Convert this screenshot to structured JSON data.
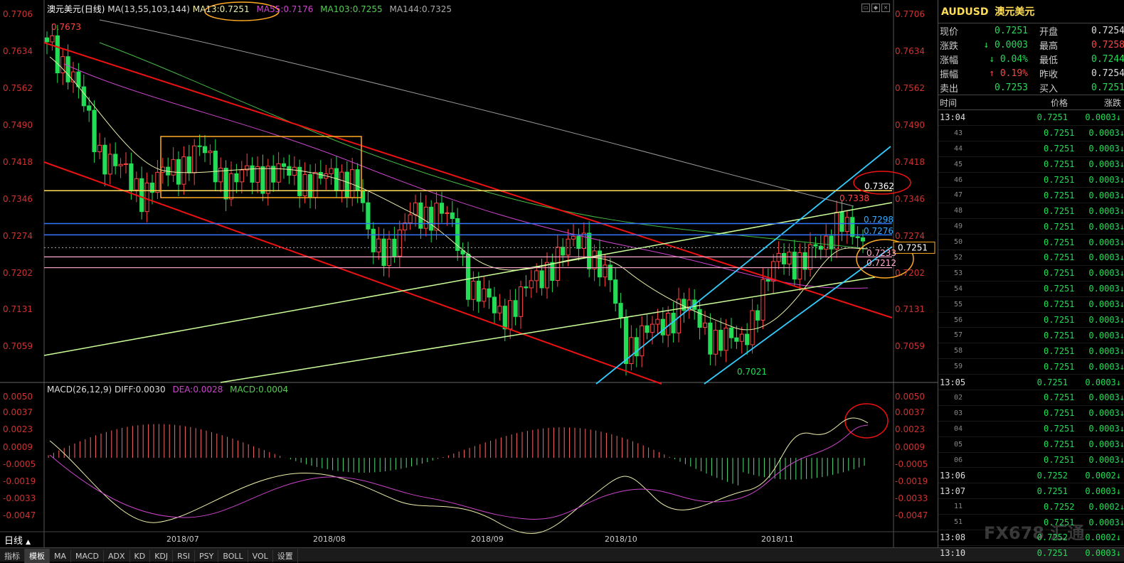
{
  "header": {
    "symbol_cn": "澳元美元",
    "period": "日线",
    "ma_params": "MA(13,55,103,144)",
    "ma13": "MA13:0.7251",
    "ma55": "MA55:0.7176",
    "ma103": "MA103:0.7255",
    "ma144": "MA144:0.7325"
  },
  "price_axis": [
    "0.7706",
    "0.7634",
    "0.7562",
    "0.7490",
    "0.7418",
    "0.7346",
    "0.7274",
    "0.7202",
    "0.7131",
    "0.7059"
  ],
  "annotations": {
    "high": "0.7673",
    "low": "0.7021",
    "recent_high": "0.7338",
    "yellow_line": "0.7362",
    "blue1": "0.7298",
    "blue2": "0.7276",
    "pink1": "0.7233",
    "pink2": "0.7212",
    "current": "0.7251"
  },
  "macd": {
    "label": "MACD(26,12,9)",
    "diff": "DIFF:0.0030",
    "dea": "DEA:0.0028",
    "macd": "MACD:0.0004",
    "axis": [
      "0.0050",
      "0.0037",
      "0.0023",
      "0.0009",
      "-0.0005",
      "-0.0019",
      "-0.0033",
      "-0.0047"
    ]
  },
  "dates": [
    "2018/07",
    "2018/08",
    "2018/09",
    "2018/10",
    "2018/11"
  ],
  "period_label": "日线",
  "tabs": [
    "指标",
    "模板",
    "MA",
    "MACD",
    "ADX",
    "KD",
    "KDJ",
    "RSI",
    "PSY",
    "BOLL",
    "VOL",
    "设置"
  ],
  "active_tab": "模板",
  "quote": {
    "code": "AUDUSD",
    "name": "澳元美元",
    "rows": [
      {
        "k": "现价",
        "v": "0.7251",
        "k2": "开盘",
        "v2": "0.7254",
        "c1": "#22dd55",
        "c2": "#dddddd"
      },
      {
        "k": "涨跌",
        "v": "↓ 0.0003",
        "k2": "最高",
        "v2": "0.7258",
        "c1": "#22dd55",
        "c2": "#ff4444"
      },
      {
        "k": "涨幅",
        "v": "↓ 0.04%",
        "k2": "最低",
        "v2": "0.7244",
        "c1": "#22dd55",
        "c2": "#22dd55"
      },
      {
        "k": "振幅",
        "v": "↑ 0.19%",
        "k2": "昨收",
        "v2": "0.7254",
        "c1": "#ff4444",
        "c2": "#dddddd"
      },
      {
        "k": "卖出",
        "v": "0.7253",
        "k2": "买入",
        "v2": "0.7251",
        "c1": "#22dd55",
        "c2": "#22dd55"
      }
    ],
    "ticks_header": [
      "时间",
      "价格",
      "涨跌"
    ],
    "ticks": [
      {
        "t": "13:04",
        "p": "0.7251",
        "c": "0.0003↓",
        "main": true
      },
      {
        "t": "43",
        "p": "0.7251",
        "c": "0.0003↓"
      },
      {
        "t": "44",
        "p": "0.7251",
        "c": "0.0003↓"
      },
      {
        "t": "45",
        "p": "0.7251",
        "c": "0.0003↓"
      },
      {
        "t": "46",
        "p": "0.7251",
        "c": "0.0003↓"
      },
      {
        "t": "47",
        "p": "0.7251",
        "c": "0.0003↓"
      },
      {
        "t": "48",
        "p": "0.7251",
        "c": "0.0003↓"
      },
      {
        "t": "49",
        "p": "0.7251",
        "c": "0.0003↓"
      },
      {
        "t": "50",
        "p": "0.7251",
        "c": "0.0003↓"
      },
      {
        "t": "52",
        "p": "0.7251",
        "c": "0.0003↓"
      },
      {
        "t": "53",
        "p": "0.7251",
        "c": "0.0003↓"
      },
      {
        "t": "54",
        "p": "0.7251",
        "c": "0.0003↓"
      },
      {
        "t": "55",
        "p": "0.7251",
        "c": "0.0003↓"
      },
      {
        "t": "56",
        "p": "0.7251",
        "c": "0.0003↓"
      },
      {
        "t": "57",
        "p": "0.7251",
        "c": "0.0003↓"
      },
      {
        "t": "58",
        "p": "0.7251",
        "c": "0.0003↓"
      },
      {
        "t": "59",
        "p": "0.7251",
        "c": "0.0003↓"
      },
      {
        "t": "13:05",
        "p": "0.7251",
        "c": "0.0003↓",
        "main": true
      },
      {
        "t": "02",
        "p": "0.7251",
        "c": "0.0003↓"
      },
      {
        "t": "03",
        "p": "0.7251",
        "c": "0.0003↓"
      },
      {
        "t": "04",
        "p": "0.7251",
        "c": "0.0003↓"
      },
      {
        "t": "05",
        "p": "0.7251",
        "c": "0.0003↓"
      },
      {
        "t": "06",
        "p": "0.7251",
        "c": "0.0003↓"
      },
      {
        "t": "13:06",
        "p": "0.7252",
        "c": "0.0002↓",
        "main": true
      },
      {
        "t": "13:07",
        "p": "0.7251",
        "c": "0.0003↓",
        "main": true
      },
      {
        "t": "11",
        "p": "0.7252",
        "c": "0.0002↓"
      },
      {
        "t": "51",
        "p": "0.7251",
        "c": "0.0003↓"
      },
      {
        "t": "13:08",
        "p": "0.7252",
        "c": "0.0002↓",
        "main": true
      },
      {
        "t": "13:10",
        "p": "0.7251",
        "c": "0.0003↓",
        "main": true
      }
    ],
    "watermark": "FX678 汇通"
  },
  "colors": {
    "up": "#ff4444",
    "down": "#22dd55",
    "yellow": "#ffdd55",
    "red_channel": "#ee1111",
    "blue": "#3377ff",
    "cyan": "#33ccff",
    "pink": "#ffaacc",
    "lightgreen": "#ccff99"
  }
}
